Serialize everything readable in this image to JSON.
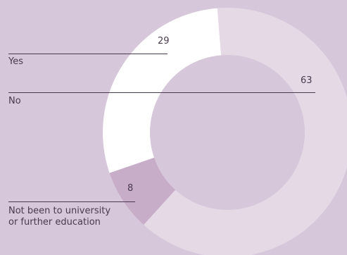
{
  "chart_data": {
    "type": "pie",
    "variant": "donut",
    "categories": [
      "Yes",
      "No",
      "Not been to university or further education"
    ],
    "values": [
      29,
      63,
      8
    ],
    "value_labels": [
      "29",
      "63",
      "8"
    ],
    "colors": [
      "#ffffff",
      "#e5d9e6",
      "#c8adc9"
    ],
    "title": "",
    "legend": "inline labels with leader lines"
  },
  "style": {
    "background": "#d7c7da",
    "hole": "#d7c7da",
    "text": "#4a3a4e"
  }
}
